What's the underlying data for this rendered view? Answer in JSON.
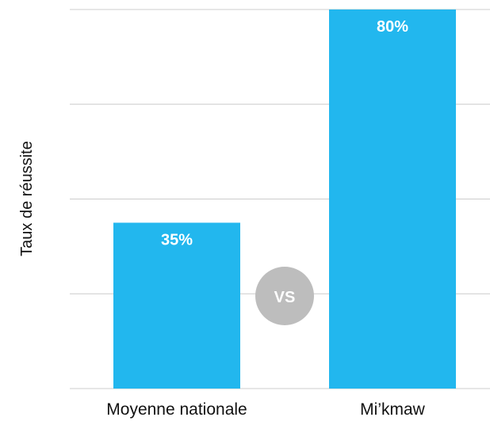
{
  "chart_data": {
    "type": "bar",
    "title": "",
    "xlabel": "",
    "ylabel": "Taux de réussite",
    "categories": [
      "Moyenne nationale",
      "Mi’kmaw"
    ],
    "values": [
      35,
      80
    ],
    "data_labels": [
      "35%",
      "80%"
    ],
    "ylim": [
      0,
      80
    ],
    "grid": true,
    "legend": "none",
    "annotation": "VS"
  },
  "colors": {
    "bar": "#22b7ee",
    "grid": "#cccccc",
    "vs_badge": "#bdbdbd",
    "text": "#111111"
  }
}
